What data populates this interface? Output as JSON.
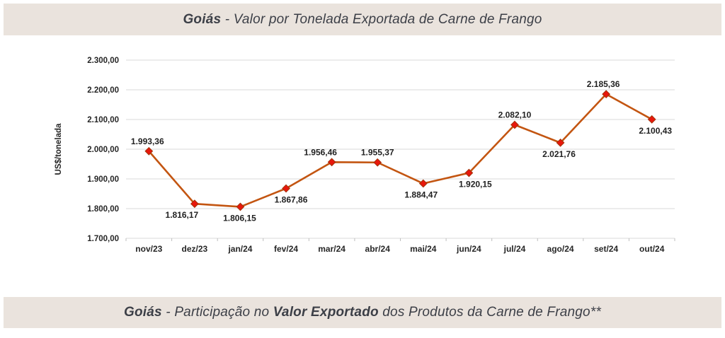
{
  "top_banner": {
    "bold": "Goiás",
    "rest": " - Valor por Tonelada Exportada de Carne de Frango",
    "background": "#EAE3DD",
    "text_color": "#3C3F47"
  },
  "bottom_banner": {
    "bold1": "Goiás",
    "mid": " - Participação no ",
    "bold2": "Valor Exportado",
    "rest": " dos Produtos da Carne de Frango**",
    "background": "#EAE3DD",
    "text_color": "#3C3F47"
  },
  "chart_data": {
    "type": "line",
    "title": "Goiás - Valor por Tonelada Exportada de Carne de Frango",
    "xlabel": "",
    "ylabel": "US$/tonelada",
    "ylim": [
      1700,
      2300
    ],
    "ytick_step": 100,
    "yticks": [
      "2.300,00",
      "2.200,00",
      "2.100,00",
      "2.000,00",
      "1.900,00",
      "1.800,00",
      "1.700,00"
    ],
    "grid": true,
    "legend": "none",
    "marker_shape": "diamond",
    "grid_color": "#D9D9D9",
    "axis_color": "#BFBFBF",
    "tick_color": "#262626",
    "label_color": "#1F1F1F",
    "line_color": "#C35511",
    "marker_color": "#E8170C",
    "marker_edge_color": "#A2330A",
    "categories": [
      "nov/23",
      "dez/23",
      "jan/24",
      "fev/24",
      "mar/24",
      "abr/24",
      "mai/24",
      "jun/24",
      "jul/24",
      "ago/24",
      "set/24",
      "out/24"
    ],
    "series": [
      {
        "name": "US$/tonelada",
        "points": [
          {
            "x": "nov/23",
            "y": 1993.36,
            "label": "1.993,36",
            "label_position": "above",
            "label_dx": -2
          },
          {
            "x": "dez/23",
            "y": 1816.17,
            "label": "1.816,17",
            "label_position": "below",
            "label_dx": -18
          },
          {
            "x": "jan/24",
            "y": 1806.15,
            "label": "1.806,15",
            "label_position": "below",
            "label_dx": -1
          },
          {
            "x": "fev/24",
            "y": 1867.86,
            "label": "1.867,86",
            "label_position": "below",
            "label_dx": 7
          },
          {
            "x": "mar/24",
            "y": 1956.46,
            "label": "1.956,46",
            "label_position": "above",
            "label_dx": -16
          },
          {
            "x": "abr/24",
            "y": 1955.37,
            "label": "1.955,37",
            "label_position": "above",
            "label_dx": 0
          },
          {
            "x": "mai/24",
            "y": 1884.47,
            "label": "1.884,47",
            "label_position": "below",
            "label_dx": -3
          },
          {
            "x": "jun/24",
            "y": 1920.15,
            "label": "1.920,15",
            "label_position": "below",
            "label_dx": 9
          },
          {
            "x": "jul/24",
            "y": 2082.1,
            "label": "2.082,10",
            "label_position": "above",
            "label_dx": 0
          },
          {
            "x": "ago/24",
            "y": 2021.76,
            "label": "2.021,76",
            "label_position": "below",
            "label_dx": -2
          },
          {
            "x": "set/24",
            "y": 2185.36,
            "label": "2.185,36",
            "label_position": "above",
            "label_dx": -4
          },
          {
            "x": "out/24",
            "y": 2100.43,
            "label": "2.100,43",
            "label_position": "below",
            "label_dx": 5
          }
        ]
      }
    ]
  }
}
